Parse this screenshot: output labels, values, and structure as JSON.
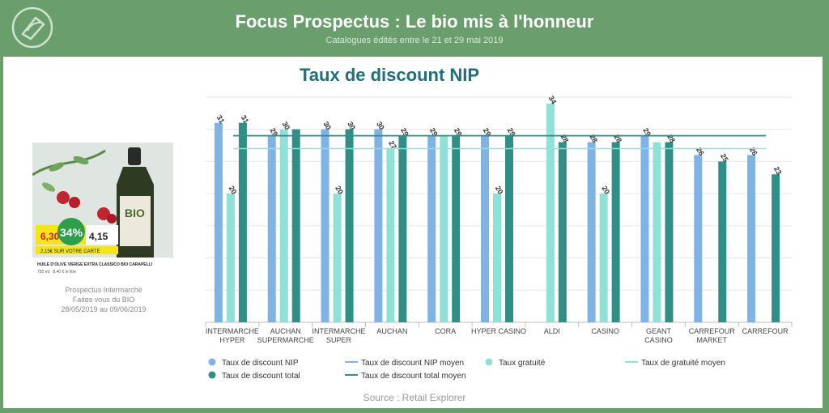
{
  "header": {
    "title": "Focus Prospectus : Le bio mis à l'honneur",
    "subtitle": "Catalogues édités entre le 21 et 29 mai 2019"
  },
  "left_panel": {
    "caption_line1": "Prospectus Intermarché",
    "caption_line2": "Faites vous du BIO",
    "caption_line3": "28/05/2019 au 09/06/2019",
    "product": {
      "price_left": "6,30",
      "discount_badge": "34%",
      "price_right": "4,15",
      "offer_band": "2,15€ SUR VOTRE CARTE",
      "bottle_label": "BIO",
      "product_name": "HUILE D'OLIVE VIERGE EXTRA CLASSICO BIO CARAPELLI",
      "product_detail": "750 ml · 8,40 € le litre"
    }
  },
  "footer": {
    "source": "Source : Retail Explorer"
  },
  "colors": {
    "background": "#6a9e6c",
    "nip": "#7fb2e5",
    "gratuite": "#8fe0d6",
    "total": "#2f8f86",
    "nip_moyen": "#7fb2e5",
    "gratuite_moyen": "#8fe0d6",
    "total_moyen": "#2f8f86",
    "chart_title": "#1f6f7a"
  },
  "chart_data": {
    "type": "bar",
    "title": "Taux de discount NIP",
    "categories": [
      "INTERMARCHE HYPER",
      "AUCHAN SUPERMARCHE",
      "INTERMARCHE SUPER",
      "AUCHAN",
      "CORA",
      "HYPER CASINO",
      "ALDI",
      "CASINO",
      "GEANT CASINO",
      "CARREFOUR MARKET",
      "CARREFOUR"
    ],
    "category_lines": [
      [
        "INTERMARCHE",
        "HYPER"
      ],
      [
        "AUCHAN",
        "SUPERMARCHE"
      ],
      [
        "INTERMARCHE",
        "SUPER"
      ],
      [
        "AUCHAN"
      ],
      [
        "CORA"
      ],
      [
        "HYPER CASINO"
      ],
      [
        "ALDI"
      ],
      [
        "CASINO"
      ],
      [
        "GEANT",
        "CASINO"
      ],
      [
        "CARREFOUR",
        "MARKET"
      ],
      [
        "CARREFOUR"
      ]
    ],
    "series": [
      {
        "name": "Taux de discount NIP",
        "values": [
          31,
          29,
          30,
          30,
          29,
          29,
          null,
          28,
          29,
          26,
          26
        ]
      },
      {
        "name": "Taux gratuité",
        "values": [
          20,
          30,
          20,
          27,
          29,
          20,
          34,
          20,
          28,
          null,
          null
        ]
      },
      {
        "name": "Taux de discount total",
        "values": [
          31,
          30,
          30,
          29,
          29,
          29,
          28,
          28,
          28,
          25,
          23
        ]
      }
    ],
    "value_labels": [
      [
        "31",
        "29",
        "30",
        "30",
        "29",
        "29",
        null,
        "28",
        "29",
        "26",
        "26"
      ],
      [
        "20",
        "30",
        "20",
        "27",
        null,
        "20",
        "34",
        "20",
        null,
        null,
        null
      ],
      [
        "31",
        null,
        "30",
        "29",
        "29",
        "29",
        "28",
        "28",
        "28",
        "25",
        "23"
      ]
    ],
    "reference_lines": [
      {
        "name": "Taux de discount NIP moyen",
        "value": 29.0
      },
      {
        "name": "Taux de gratuité moyen",
        "value": 27.0
      },
      {
        "name": "Taux de discount total moyen",
        "value": 29.0
      }
    ],
    "legend": [
      {
        "label": "Taux de discount NIP",
        "marker": "dot",
        "color": "#7fb2e5"
      },
      {
        "label": "Taux de discount NIP moyen",
        "marker": "line",
        "color": "#7fb2e5"
      },
      {
        "label": "Taux gratuité",
        "marker": "dot",
        "color": "#8fe0d6"
      },
      {
        "label": "Taux de gratuité moyen",
        "marker": "line",
        "color": "#8fe0d6"
      },
      {
        "label": "Taux de discount total",
        "marker": "dot",
        "color": "#2f8f86"
      },
      {
        "label": "Taux de discount total moyen",
        "marker": "line",
        "color": "#2f8f86"
      }
    ],
    "legend_position": "bottom",
    "ylim": [
      0,
      36
    ],
    "grid": true
  }
}
